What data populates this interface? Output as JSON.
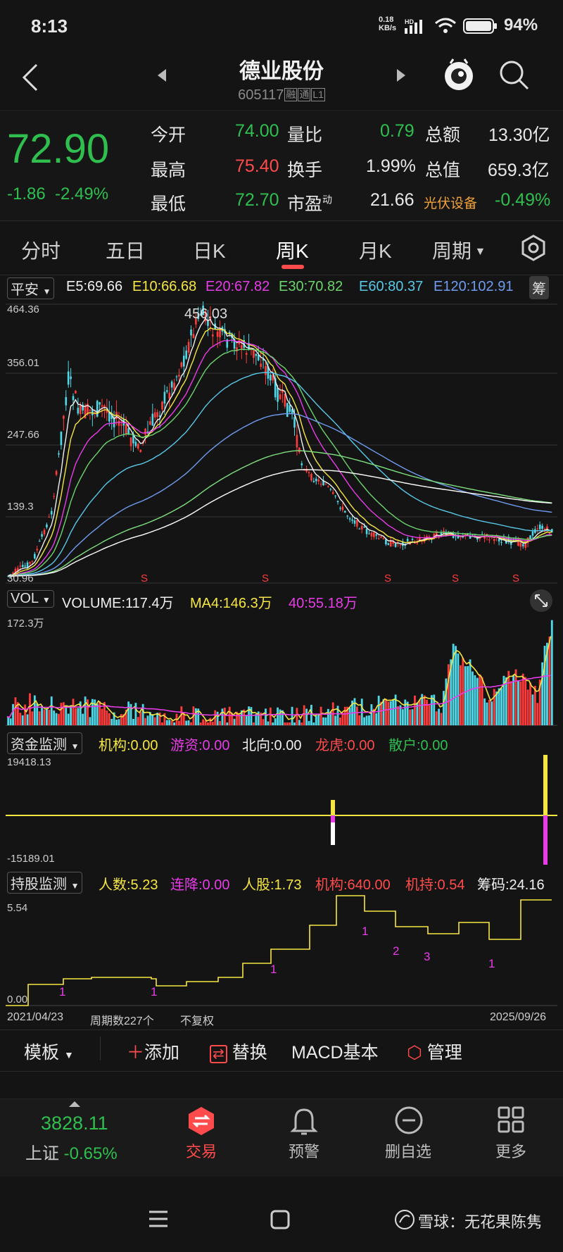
{
  "status": {
    "time": "8:13",
    "net_speed": "0.18",
    "net_unit": "KB/s",
    "battery": "94%"
  },
  "header": {
    "title": "德业股份",
    "code": "605117",
    "tags": [
      "融",
      "通",
      "L1"
    ]
  },
  "quote": {
    "price": "72.90",
    "change": "-1.86",
    "change_pct": "-2.49%",
    "rows": [
      {
        "l1": "今开",
        "v1": "74.00",
        "l2": "量比",
        "v2": "0.79",
        "l3": "总额",
        "v3": "13.30亿"
      },
      {
        "l1": "最高",
        "v1": "75.40",
        "l2": "换手",
        "v2": "1.99%",
        "l3": "总值",
        "v3": "659.3亿"
      },
      {
        "l1": "最低",
        "v1": "72.70",
        "l2": "市盈",
        "l2sup": "动",
        "v2": "21.66",
        "l3": "光伏设备",
        "v3": "-0.49%"
      }
    ]
  },
  "tabs": [
    "分时",
    "五日",
    "日K",
    "周K",
    "月K",
    "周期"
  ],
  "active_tab": "周K",
  "ma": {
    "selector": "平安",
    "e5": "E5:69.66",
    "e10": "E10:66.68",
    "e20": "E20:67.82",
    "e30": "E30:70.82",
    "e60": "E60:80.37",
    "e120": "E120:102.91",
    "chip": "筹"
  },
  "kline": {
    "y_labels": [
      "464.36",
      "356.01",
      "247.66",
      "139.3",
      "30.96"
    ],
    "peak_label": "456.03",
    "s_marker": "S"
  },
  "volume": {
    "selector": "VOL",
    "volume": "VOLUME:117.4万",
    "ma4": "MA4:146.3万",
    "ma40": "40:55.18万",
    "y_max": "172.3万"
  },
  "fund": {
    "selector": "资金监测",
    "jg": "机构:0.00",
    "yz": "游资:0.00",
    "bx": "北向:0.00",
    "lh": "龙虎:0.00",
    "sh": "散户:0.00",
    "y_top": "19418.13",
    "y_bottom": "-15189.01"
  },
  "hold": {
    "selector": "持股监测",
    "rs": "人数:5.23",
    "lj": "连降:0.00",
    "rg": "人股:1.73",
    "jg": "机构:640.00",
    "jc": "机持:0.54",
    "cm": "筹码:24.16",
    "y_top": "5.54",
    "y_bottom": "0.00",
    "markers": [
      "1",
      "1",
      "1",
      "1",
      "2",
      "3",
      "1"
    ]
  },
  "footer_info": {
    "start": "2021/04/23",
    "periods": "周期数227个",
    "adjust": "不复权",
    "end": "2025/09/26"
  },
  "toolbar": {
    "template": "模板",
    "add": "添加",
    "replace": "替换",
    "macd": "MACD基本",
    "manage": "管理"
  },
  "bottom_nav": {
    "index_value": "3828.11",
    "index_name": "上证",
    "index_change": "-0.65%",
    "trade": "交易",
    "alert": "预警",
    "remove": "删自选",
    "more": "更多"
  },
  "watermark": "雪球：无花果陈隽",
  "colors": {
    "up": "#ff4b4b",
    "down": "#2fbf4f",
    "cyan": "#4fd8e8"
  }
}
